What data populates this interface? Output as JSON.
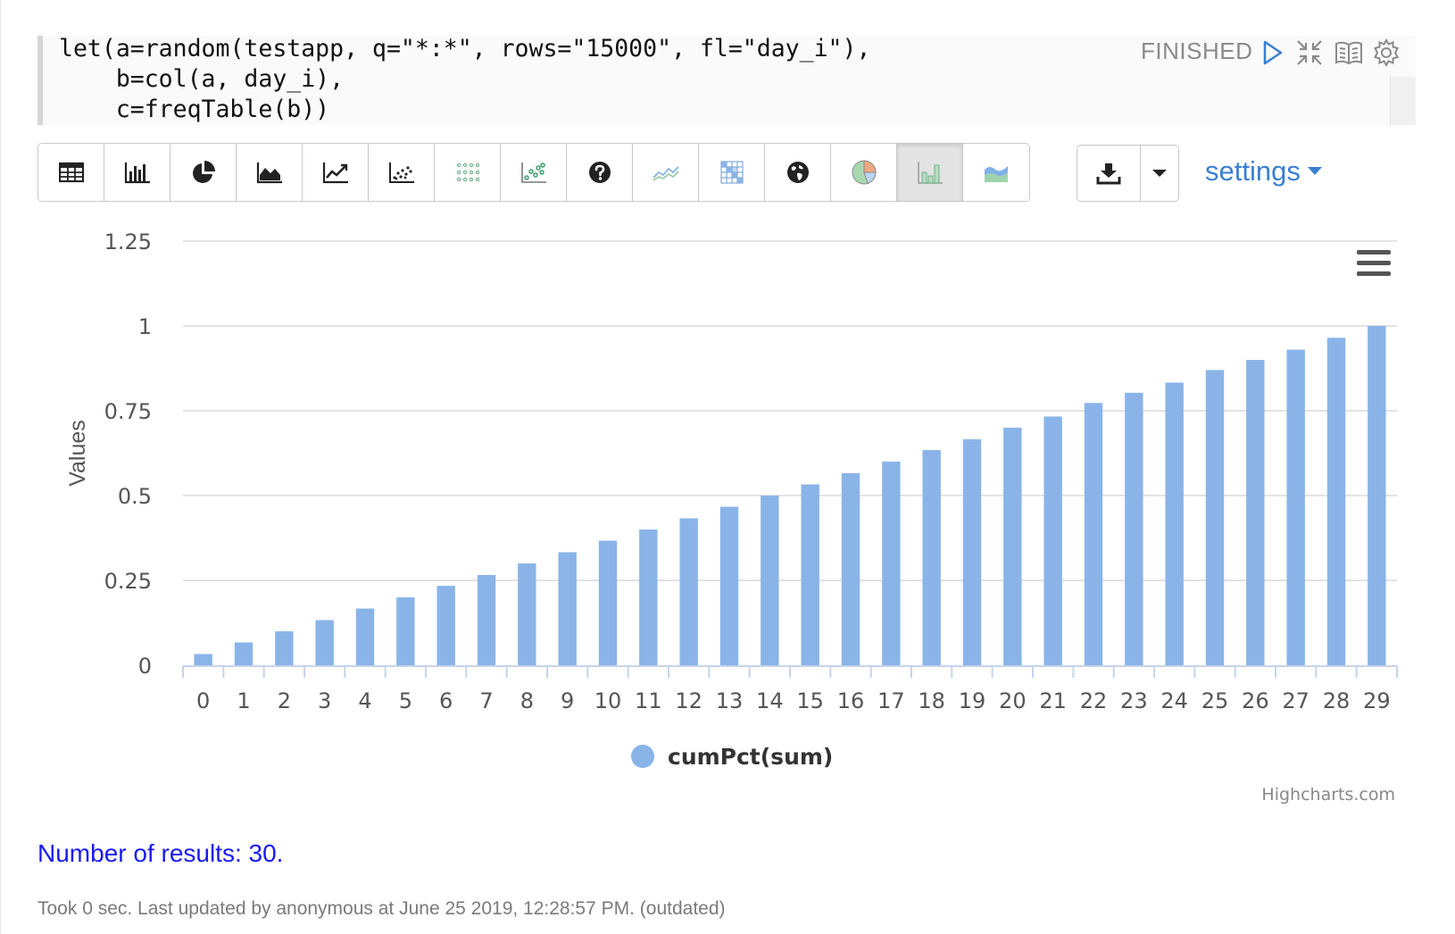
{
  "paragraph": {
    "code_lines": [
      "let(a=random(testapp, q=\"*:*\", rows=\"15000\", fl=\"day_i\"),",
      "    b=col(a, day_i),",
      "    c=freqTable(b))"
    ],
    "status": "FINISHED",
    "controls": [
      "run-icon",
      "collapse-icon",
      "book-icon",
      "gear-icon"
    ]
  },
  "toolbar": {
    "buttons": [
      {
        "name": "table-icon"
      },
      {
        "name": "bar-chart-icon"
      },
      {
        "name": "pie-chart-icon"
      },
      {
        "name": "area-chart-icon"
      },
      {
        "name": "line-chart-icon"
      },
      {
        "name": "scatter-chart-icon"
      },
      {
        "name": "bubble-grid-icon"
      },
      {
        "name": "scatter-colored-icon"
      },
      {
        "name": "help-icon"
      },
      {
        "name": "multi-line-icon"
      },
      {
        "name": "heatmap-icon"
      },
      {
        "name": "globe-icon"
      },
      {
        "name": "colored-pie-icon"
      },
      {
        "name": "colored-bar-icon",
        "active": true
      },
      {
        "name": "colored-area-icon"
      }
    ],
    "download_icon": "download-icon",
    "settings_label": "settings"
  },
  "chart_data": {
    "type": "bar",
    "title": "",
    "xlabel": "",
    "ylabel": "Values",
    "ylim": [
      0,
      1.25
    ],
    "yticks": [
      "0",
      "0.25",
      "0.5",
      "0.75",
      "1",
      "1.25"
    ],
    "categories": [
      "0",
      "1",
      "2",
      "3",
      "4",
      "5",
      "6",
      "7",
      "8",
      "9",
      "10",
      "11",
      "12",
      "13",
      "14",
      "15",
      "16",
      "17",
      "18",
      "19",
      "20",
      "21",
      "22",
      "23",
      "24",
      "25",
      "26",
      "27",
      "28",
      "29"
    ],
    "series": [
      {
        "name": "cumPct(sum)",
        "values": [
          0.033,
          0.067,
          0.1,
          0.133,
          0.167,
          0.2,
          0.234,
          0.266,
          0.3,
          0.333,
          0.367,
          0.4,
          0.433,
          0.467,
          0.5,
          0.533,
          0.566,
          0.6,
          0.634,
          0.666,
          0.7,
          0.733,
          0.773,
          0.803,
          0.833,
          0.87,
          0.9,
          0.93,
          0.965,
          1.0
        ]
      }
    ],
    "color": "#8ab4e8",
    "grid": true,
    "legend": "bottom-center",
    "credits": "Highcharts.com",
    "menu_icon": "hamburger-menu-icon"
  },
  "results": {
    "text": "Number of results: 30."
  },
  "footer": {
    "text": "Took 0 sec. Last updated by anonymous at June 25 2019, 12:28:57 PM. (outdated)"
  }
}
